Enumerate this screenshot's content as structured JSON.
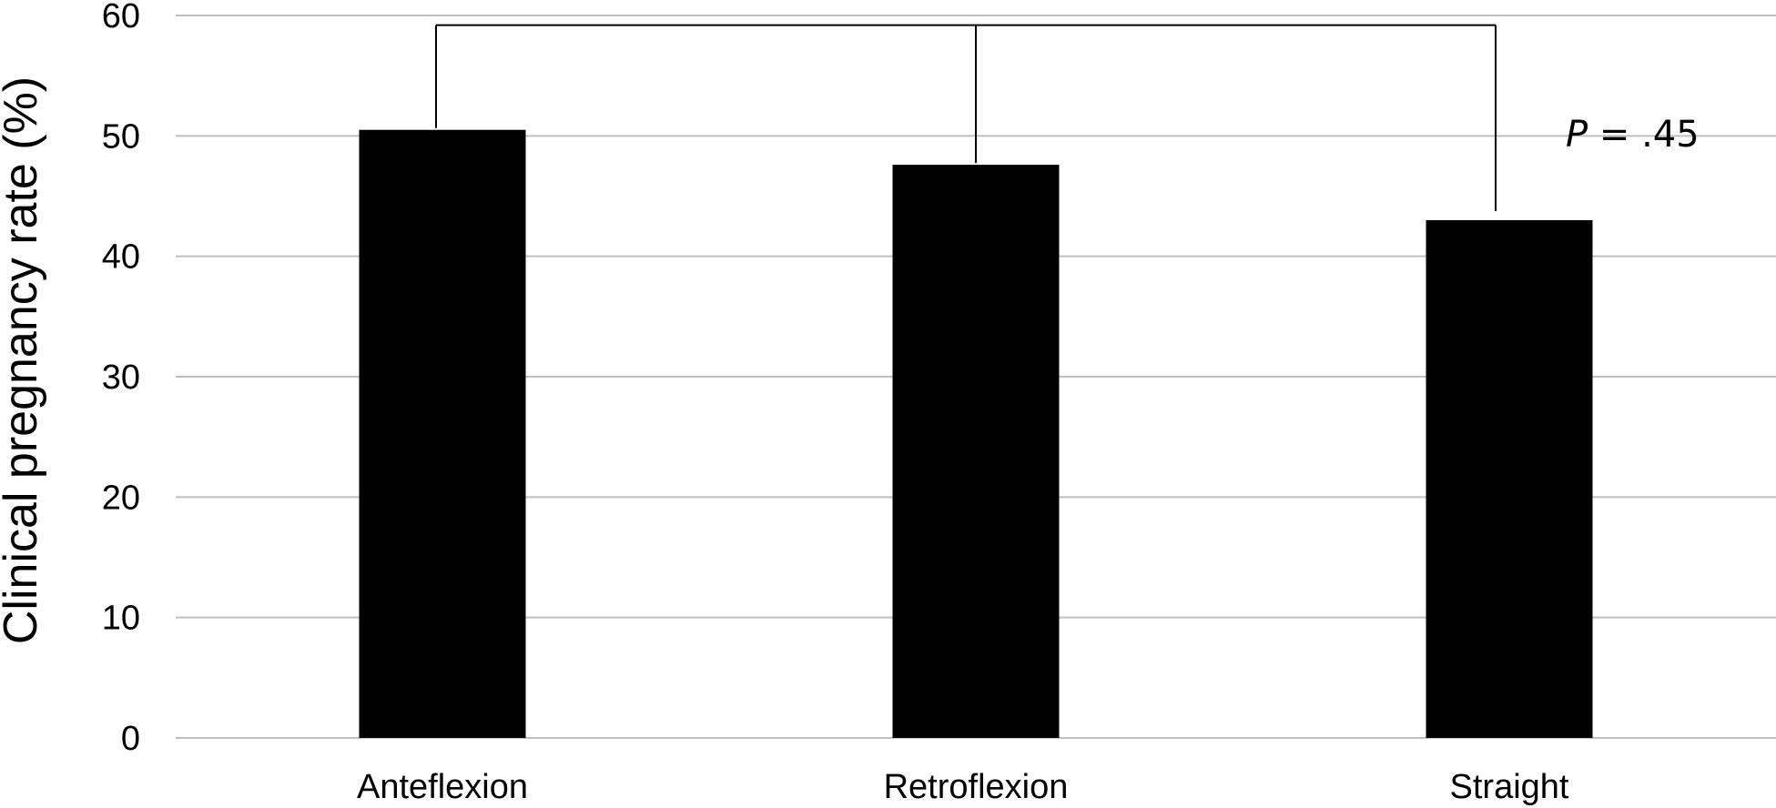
{
  "chart_data": {
    "type": "bar",
    "categories": [
      "Anteflexion",
      "Retroflexion",
      "Straight"
    ],
    "values": [
      50.5,
      47.6,
      43.0
    ],
    "ylabel": "Clinical pregnancy rate (%)",
    "xlabel": "",
    "ylim": [
      0,
      60
    ],
    "yticks": [
      0,
      10,
      20,
      30,
      40,
      50,
      60
    ],
    "grid": true,
    "legend": "none",
    "bar_color": "#000000",
    "annotation": {
      "p_symbol": "P",
      "p_text": " = .45",
      "bracket_top": 59.2
    }
  }
}
